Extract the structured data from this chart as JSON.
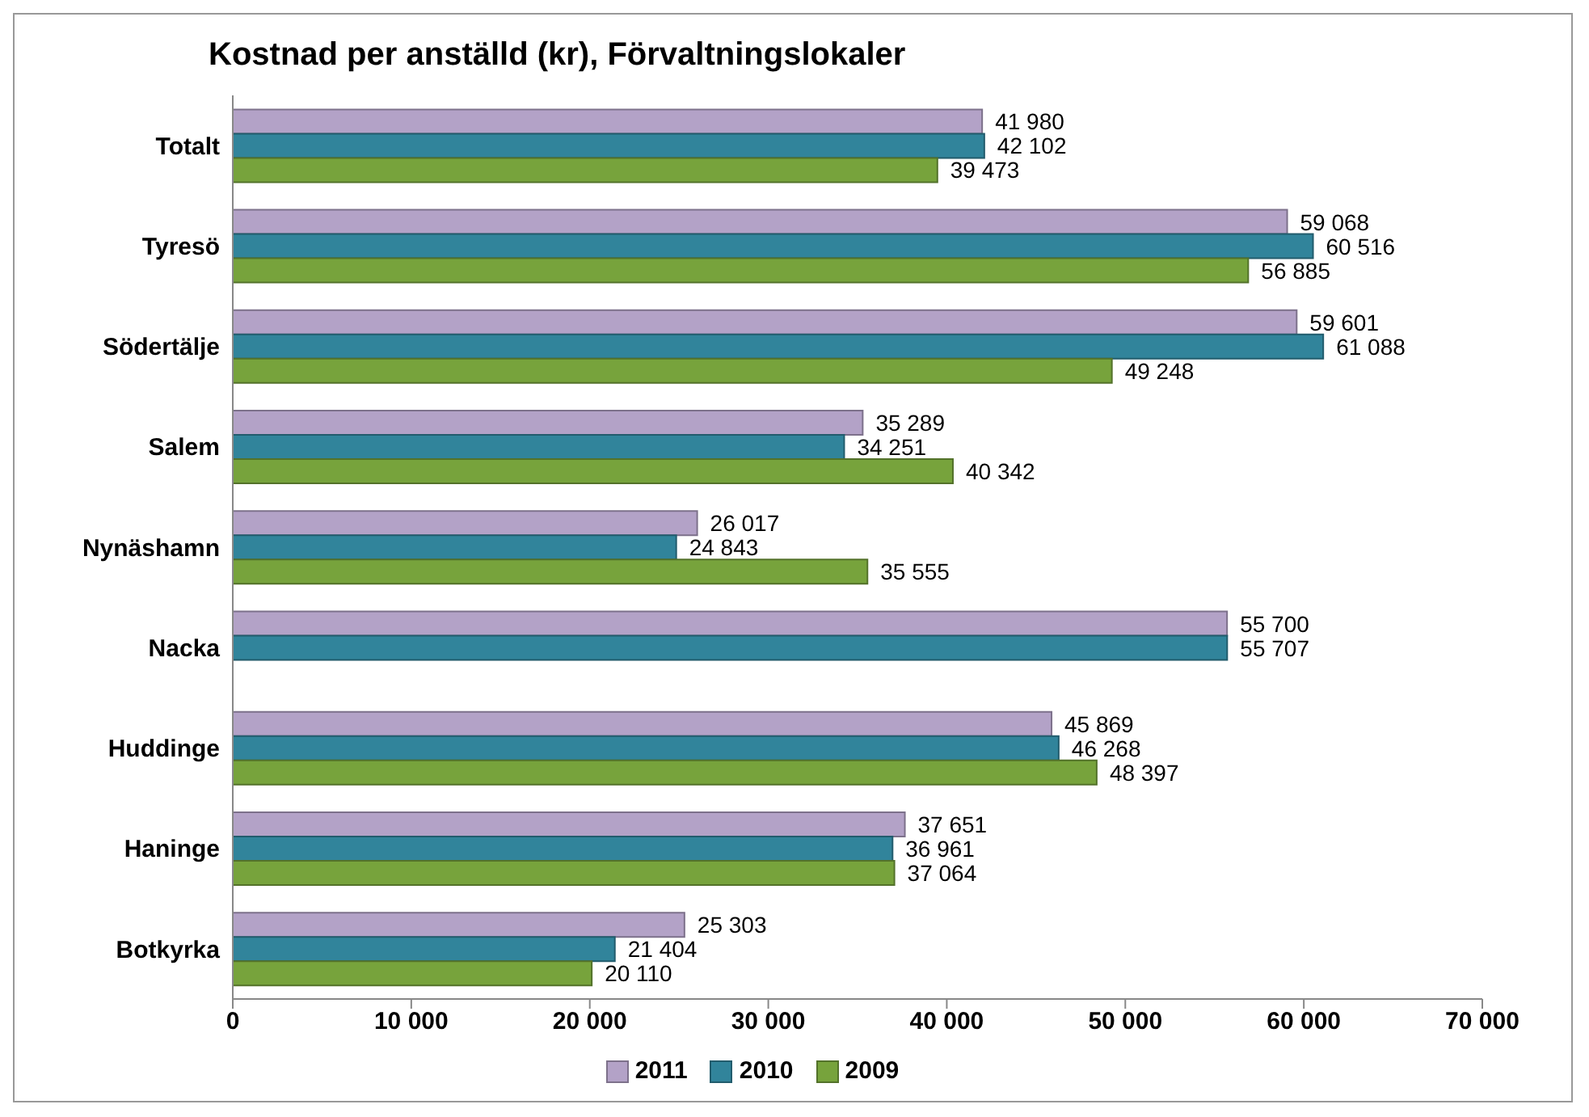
{
  "chart_data": {
    "type": "bar",
    "orientation": "horizontal",
    "title": "Kostnad per anställd (kr), Förvaltningslokaler",
    "categories": [
      "Totalt",
      "Tyresö",
      "Södertälje",
      "Salem",
      "Nynäshamn",
      "Nacka",
      "Huddinge",
      "Haninge",
      "Botkyrka"
    ],
    "series": [
      {
        "name": "2011",
        "color": "#b3a2c7",
        "values": [
          41980,
          59068,
          59601,
          35289,
          26017,
          55700,
          45869,
          37651,
          25303
        ],
        "value_labels": [
          "41 980",
          "59 068",
          "59 601",
          "35 289",
          "26 017",
          "55 700",
          "45 869",
          "37 651",
          "25 303"
        ]
      },
      {
        "name": "2010",
        "color": "#31849b",
        "values": [
          42102,
          60516,
          61088,
          34251,
          24843,
          55707,
          46268,
          36961,
          21404
        ],
        "value_labels": [
          "42 102",
          "60 516",
          "61 088",
          "34 251",
          "24 843",
          "55 707",
          "46 268",
          "36 961",
          "21 404"
        ]
      },
      {
        "name": "2009",
        "color": "#77a33c",
        "values": [
          39473,
          56885,
          49248,
          40342,
          35555,
          null,
          48397,
          37064,
          20110
        ],
        "value_labels": [
          "39 473",
          "56 885",
          "49 248",
          "40 342",
          "35 555",
          null,
          "48 397",
          "37 064",
          "20 110"
        ]
      }
    ],
    "xlim": [
      0,
      70000
    ],
    "xticks": [
      {
        "value": 0,
        "label": "0"
      },
      {
        "value": 10000,
        "label": "10 000"
      },
      {
        "value": 20000,
        "label": "20 000"
      },
      {
        "value": 30000,
        "label": "30 000"
      },
      {
        "value": 40000,
        "label": "40 000"
      },
      {
        "value": 50000,
        "label": "50 000"
      },
      {
        "value": 60000,
        "label": "60 000"
      },
      {
        "value": 70000,
        "label": "70 000"
      }
    ],
    "grid": false,
    "legend": "bottom"
  }
}
